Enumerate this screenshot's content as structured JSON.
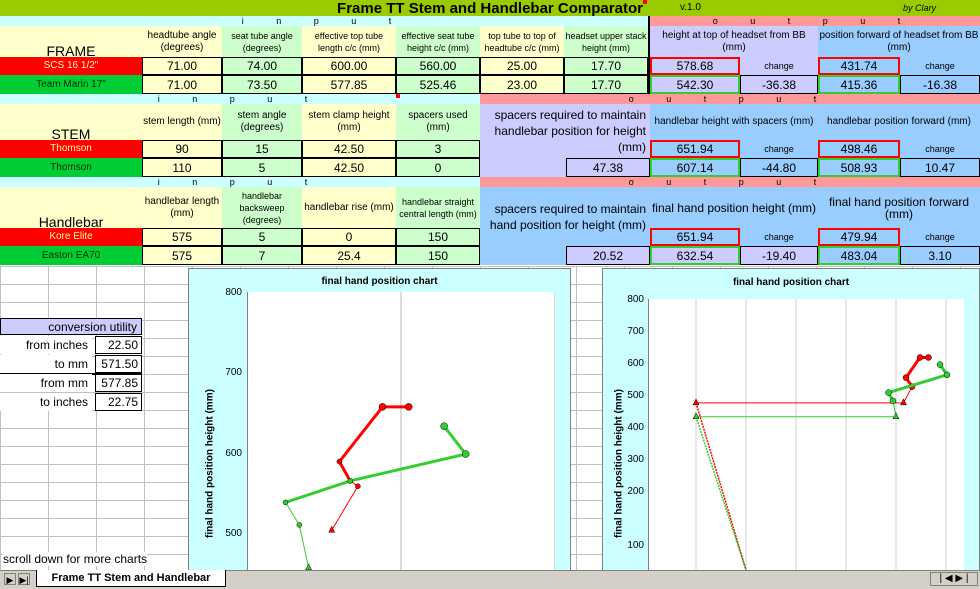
{
  "title": "Frame TT Stem and Handlebar Comparator",
  "version": "v.1.0",
  "byline": "by Clary",
  "io_input": "i n p u t",
  "io_output": "o u t p u t",
  "frame": {
    "label": "FRAME",
    "headers": [
      "headtube angle (degrees)",
      "seat tube angle (degrees)",
      "effective top tube length c/c (mm)",
      "effective seat tube height c/c (mm)",
      "top tube to top of headtube c/c (mm)",
      "headset upper stack height (mm)"
    ],
    "out_headers": [
      "height at top of headset from BB (mm)",
      "position forward of headset from BB (mm)"
    ],
    "rows": [
      {
        "name": "SCS 16 1/2\"",
        "values": [
          "71.00",
          "74.00",
          "600.00",
          "560.00",
          "25.00",
          "17.70"
        ],
        "out": [
          "578.68",
          "",
          "431.74",
          ""
        ]
      },
      {
        "name": "Team Marin 17\"",
        "values": [
          "71.00",
          "73.50",
          "577.85",
          "525.46",
          "23.00",
          "17.70"
        ],
        "out": [
          "542.30",
          "-36.38",
          "415.36",
          "-16.38"
        ]
      }
    ],
    "change": "change"
  },
  "stem": {
    "label": "STEM",
    "headers": [
      "stem length (mm)",
      "stem angle (degrees)",
      "stem clamp height (mm)",
      "spacers used (mm)"
    ],
    "out_headers": [
      "spacers required to maintain handlebar position for height (mm)",
      "handlebar height with spacers (mm)",
      "handlebar position forward (mm)"
    ],
    "rows": [
      {
        "name": "Thomson",
        "values": [
          "90",
          "15",
          "42.50",
          "3"
        ],
        "out": [
          "",
          "651.94",
          "",
          "498.46",
          ""
        ]
      },
      {
        "name": "Thomson",
        "values": [
          "110",
          "5",
          "42.50",
          "0"
        ],
        "out": [
          "47.38",
          "607.14",
          "-44.80",
          "508.93",
          "10.47"
        ]
      }
    ],
    "change": "change"
  },
  "handlebar": {
    "label": "Handlebar",
    "headers": [
      "handlebar length (mm)",
      "handlebar backsweep (degrees)",
      "handlebar rise (mm)",
      "handlebar straight central length (mm)"
    ],
    "out_headers": [
      "spacers required to maintain hand position for height (mm)",
      "final hand position height (mm)",
      "final hand position forward (mm)"
    ],
    "rows": [
      {
        "name": "Kore Elite",
        "values": [
          "575",
          "5",
          "0",
          "150"
        ],
        "out": [
          "",
          "651.94",
          "",
          "479.94",
          ""
        ]
      },
      {
        "name": "Easton EA70",
        "values": [
          "575",
          "7",
          "25.4",
          "150"
        ],
        "out": [
          "20.52",
          "632.54",
          "-19.40",
          "483.04",
          "3.10"
        ]
      }
    ],
    "change": "change"
  },
  "conversion": {
    "title": "conversion utility",
    "rows": [
      {
        "label": "from inches",
        "value": "22.50"
      },
      {
        "label": "to mm",
        "value": "571.50"
      },
      {
        "label": "from mm",
        "value": "577.85"
      },
      {
        "label": "to inches",
        "value": "22.75"
      }
    ]
  },
  "scroll_note": "scroll down for more charts",
  "sheet_tab": "Frame TT Stem and Handlebar",
  "colors": {
    "red": "#ff0000",
    "green": "#33cc33",
    "title_bg": "#99cc00"
  },
  "chart_data": [
    {
      "type": "line",
      "title": "final hand position chart",
      "ylabel": "final hand position height (mm)",
      "xlabel": "",
      "ylim": [
        500,
        800
      ],
      "xlim": [
        360,
        560
      ],
      "yticks": [
        "800",
        "700",
        "600",
        "500"
      ],
      "series": [
        {
          "color": "red",
          "points": [
            [
              415,
              537
            ],
            [
              432,
              578
            ],
            [
              427,
              583
            ],
            [
              420,
              601
            ],
            [
              448,
              652
            ],
            [
              465,
              652
            ]
          ]
        },
        {
          "color": "green",
          "points": [
            [
              400,
              502
            ],
            [
              394,
              542
            ],
            [
              385,
              563
            ],
            [
              427,
              583
            ],
            [
              502,
              608
            ],
            [
              488,
              634
            ]
          ]
        }
      ]
    },
    {
      "type": "line",
      "title": "final hand position chart",
      "ylabel": "final hand position height (mm)",
      "xlabel": "",
      "ylim": [
        0,
        800
      ],
      "yticks": [
        "800",
        "700",
        "600",
        "500",
        "400",
        "300",
        "200",
        "100"
      ],
      "series": [
        {
          "color": "red",
          "points": [
            [
              0,
              537
            ],
            [
              415,
              537
            ],
            [
              432,
              578
            ],
            [
              420,
              601
            ],
            [
              448,
              652
            ],
            [
              465,
              652
            ]
          ]
        },
        {
          "color": "green",
          "points": [
            [
              0,
              502
            ],
            [
              400,
              502
            ],
            [
              394,
              542
            ],
            [
              385,
              563
            ],
            [
              502,
              608
            ],
            [
              488,
              634
            ]
          ]
        }
      ]
    }
  ]
}
